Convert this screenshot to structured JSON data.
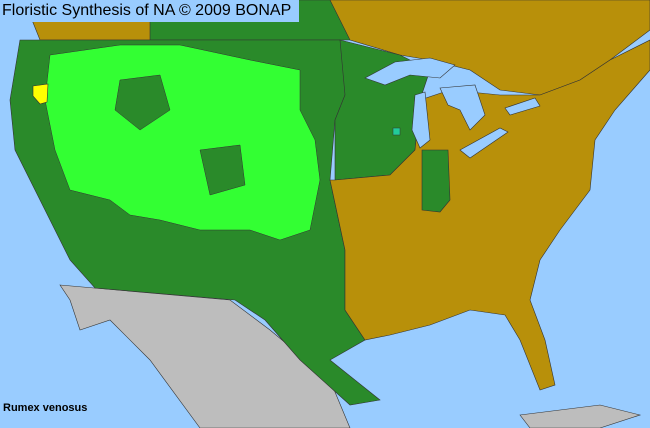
{
  "title": "Floristic Synthesis of NA © 2009 BONAP",
  "species": "Rumex venosus",
  "colors": {
    "water": "#99ccff",
    "present_native": "#2a8a2a",
    "present_noxious": "#33ff33",
    "not_present": "#b8900a",
    "outside_region": "#bdbdbd",
    "adventive": "#ffff00",
    "rare": "#22cc99",
    "borders": "#333333"
  }
}
